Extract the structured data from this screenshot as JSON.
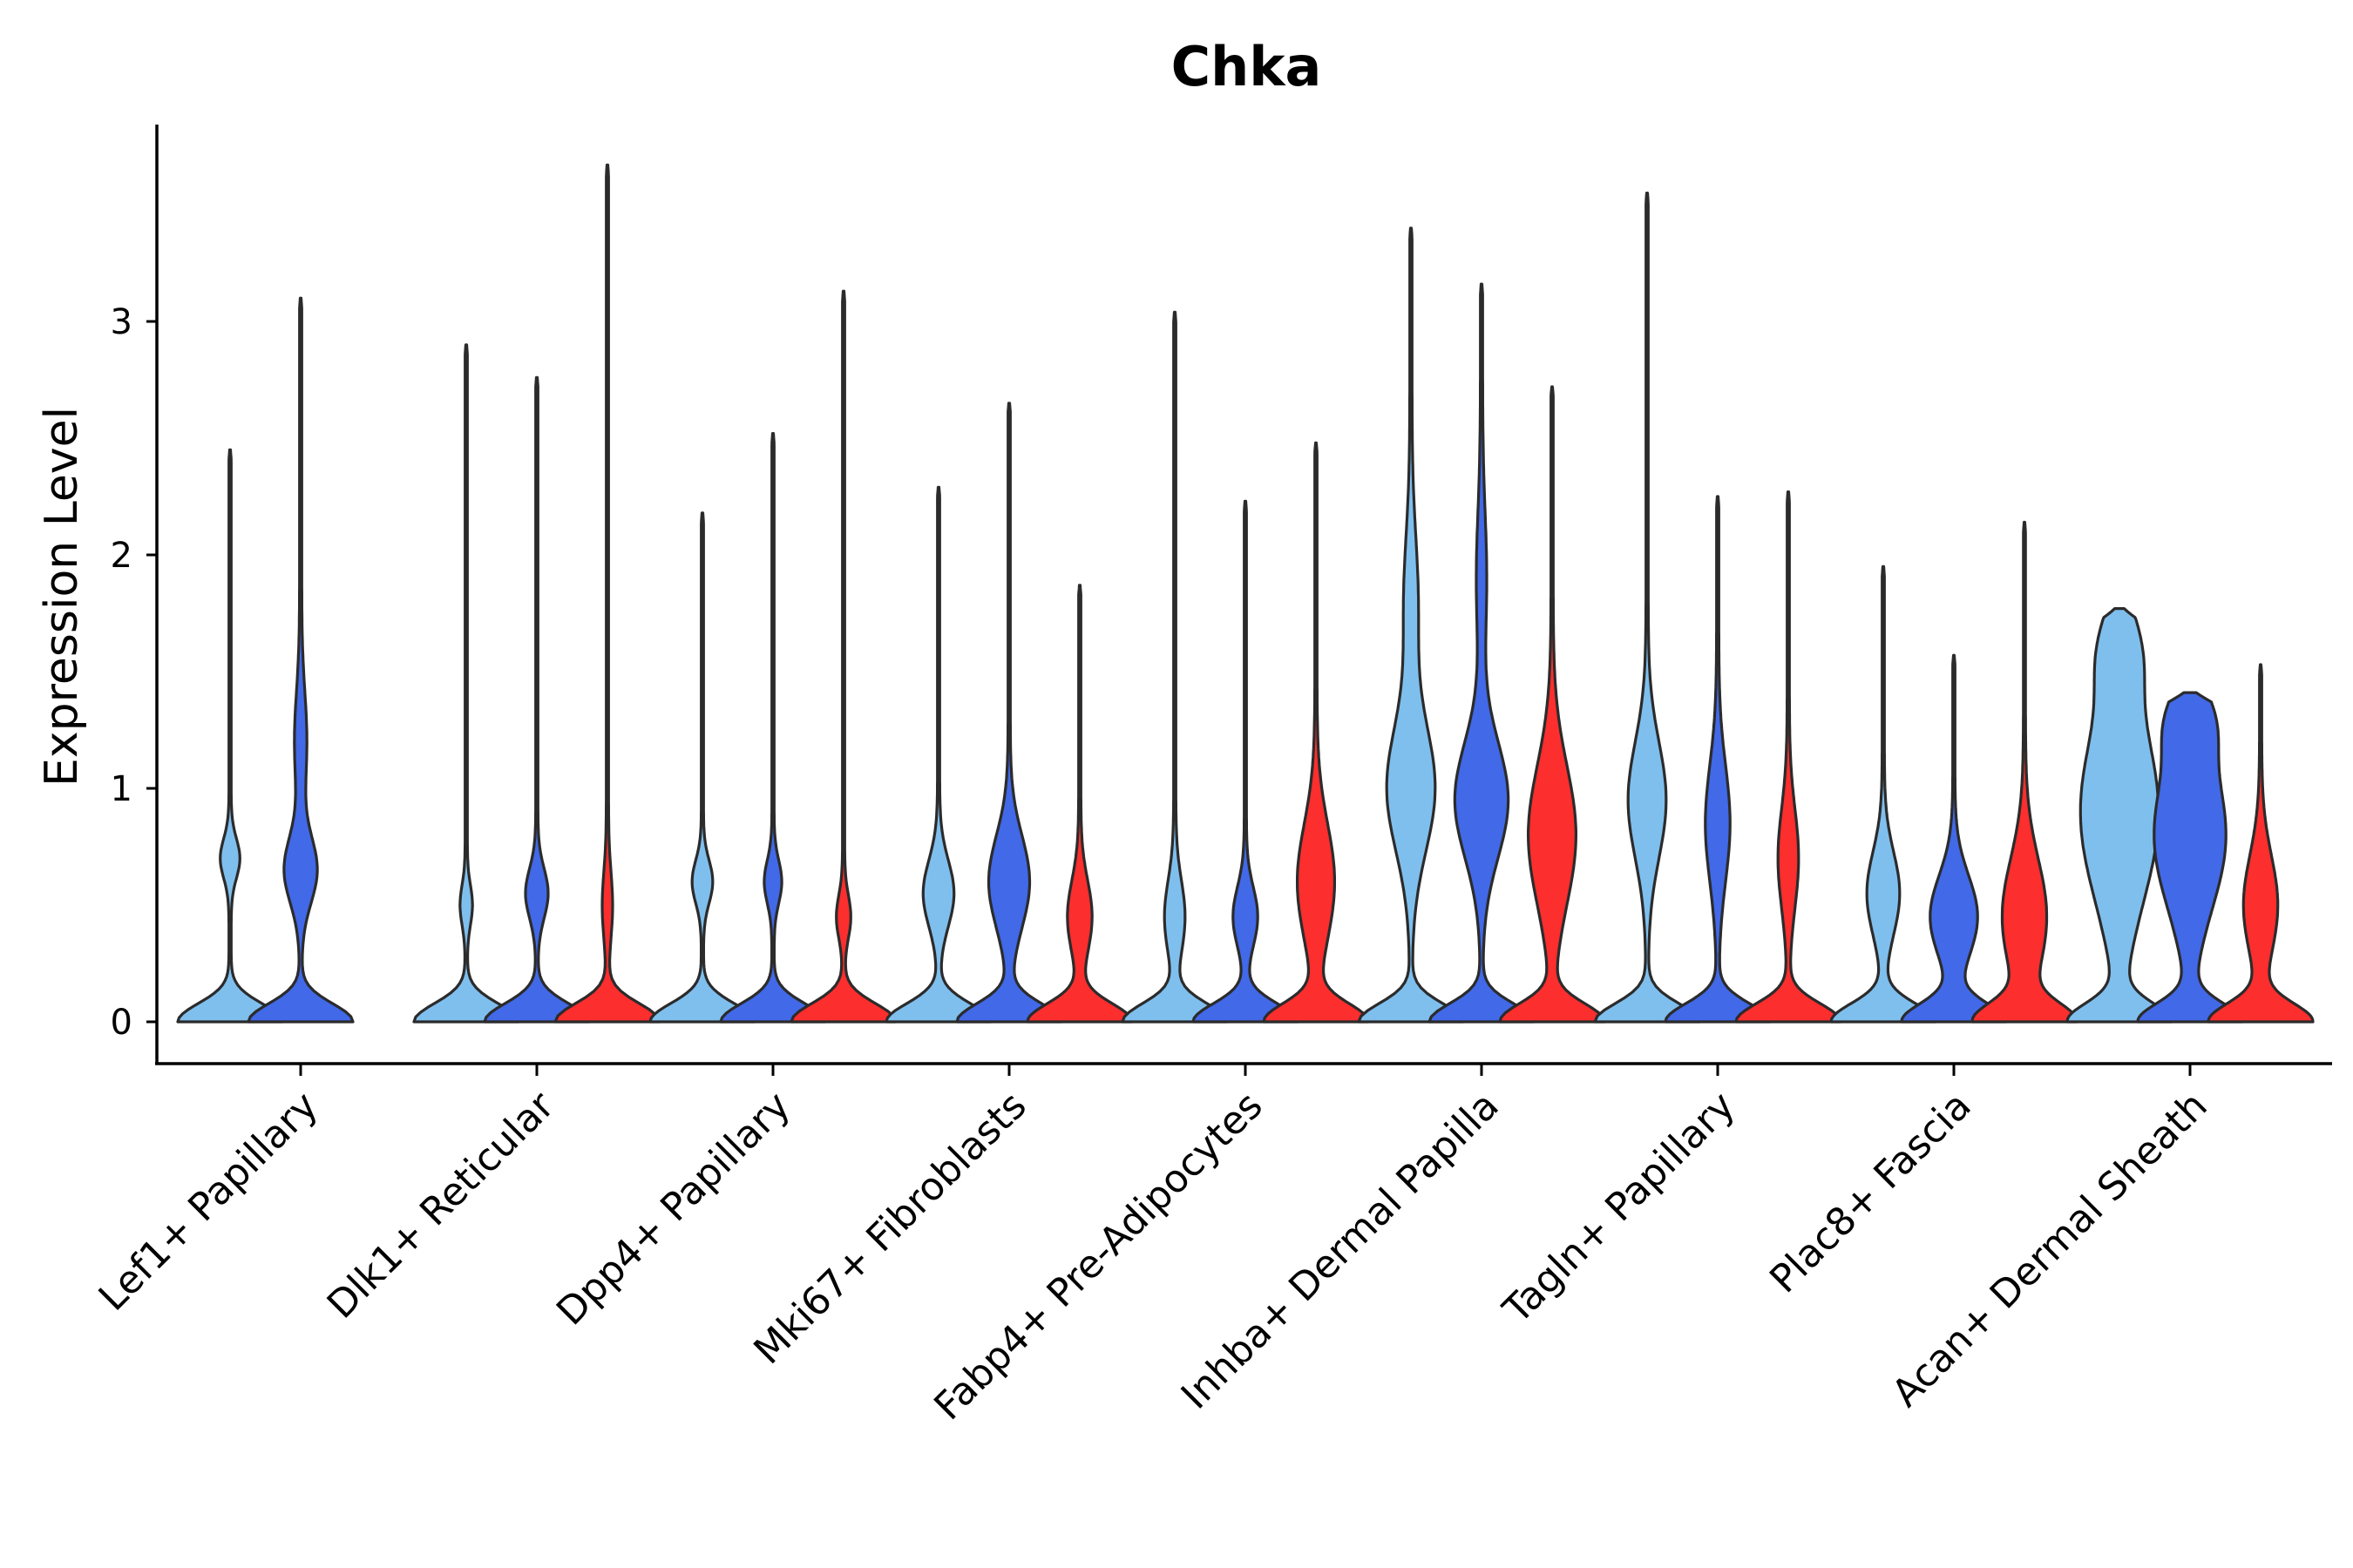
{
  "chart_data": {
    "type": "violin",
    "title": "Chka",
    "xlabel": "",
    "ylabel": "Expression Level",
    "ylim": [
      -0.18,
      3.85
    ],
    "yticks": [
      0,
      1,
      2,
      3
    ],
    "grid": false,
    "legend": "none",
    "series_colors": [
      "#7fbfee",
      "#4169e8",
      "#fc2e2e"
    ],
    "categories": [
      "Lef1+ Papillary",
      "Dlk1+ Reticular",
      "Dpp4+ Papillary",
      "Mki67+ Fibroblasts",
      "Fabp4+ Pre-Adipocytes",
      "Inhba+ Dermal Papilla",
      "Tagln+ Papillary",
      "Plac8+ Fascia",
      "Acan+ Dermal Sheath"
    ],
    "groups": [
      {
        "violins": [
          {
            "series": 0,
            "max": 2.45,
            "bumps": [
              [
                0.7,
                0.12,
                0.17
              ]
            ]
          },
          {
            "series": 1,
            "max": 3.1,
            "bumps": [
              [
                0.65,
                0.2,
                0.3
              ],
              [
                1.2,
                0.3,
                0.1
              ]
            ]
          },
          null
        ]
      },
      {
        "violins": [
          {
            "series": 0,
            "max": 2.9,
            "bumps": [
              [
                0.5,
                0.12,
                0.1
              ]
            ]
          },
          {
            "series": 1,
            "max": 2.76,
            "bumps": [
              [
                0.55,
                0.15,
                0.2
              ]
            ]
          },
          {
            "series": 2,
            "max": 3.67,
            "bumps": [
              [
                0.5,
                0.2,
                0.08
              ]
            ]
          }
        ]
      },
      {
        "violins": [
          {
            "series": 0,
            "max": 2.18,
            "bumps": [
              [
                0.6,
                0.13,
                0.18
              ]
            ]
          },
          {
            "series": 1,
            "max": 2.52,
            "bumps": [
              [
                0.6,
                0.13,
                0.15
              ]
            ]
          },
          {
            "series": 2,
            "max": 3.13,
            "bumps": [
              [
                0.45,
                0.13,
                0.12
              ]
            ]
          }
        ]
      },
      {
        "violins": [
          {
            "series": 0,
            "max": 2.29,
            "bumps": [
              [
                0.55,
                0.2,
                0.28
              ]
            ]
          },
          {
            "series": 1,
            "max": 2.65,
            "bumps": [
              [
                0.6,
                0.28,
                0.38
              ]
            ]
          },
          {
            "series": 2,
            "max": 1.87,
            "bumps": [
              [
                0.45,
                0.22,
                0.22
              ]
            ]
          }
        ]
      },
      {
        "violins": [
          {
            "series": 0,
            "max": 3.04,
            "bumps": [
              [
                0.45,
                0.22,
                0.18
              ]
            ]
          },
          {
            "series": 1,
            "max": 2.23,
            "bumps": [
              [
                0.45,
                0.18,
                0.22
              ]
            ]
          },
          {
            "series": 2,
            "max": 2.48,
            "bumps": [
              [
                0.6,
                0.35,
                0.35
              ]
            ]
          }
        ]
      },
      {
        "violins": [
          {
            "series": 0,
            "max": 3.4,
            "bumps": [
              [
                1.0,
                0.38,
                0.45
              ],
              [
                1.8,
                0.4,
                0.12
              ]
            ]
          },
          {
            "series": 1,
            "max": 3.16,
            "bumps": [
              [
                0.95,
                0.35,
                0.5
              ],
              [
                1.9,
                0.4,
                0.08
              ]
            ]
          },
          {
            "series": 2,
            "max": 2.72,
            "bumps": [
              [
                0.8,
                0.42,
                0.45
              ]
            ]
          }
        ]
      },
      {
        "violins": [
          {
            "series": 0,
            "max": 3.55,
            "bumps": [
              [
                0.95,
                0.35,
                0.35
              ]
            ]
          },
          {
            "series": 1,
            "max": 2.25,
            "bumps": [
              [
                0.85,
                0.35,
                0.22
              ]
            ]
          },
          {
            "series": 2,
            "max": 2.27,
            "bumps": [
              [
                0.7,
                0.3,
                0.18
              ]
            ]
          }
        ]
      },
      {
        "violins": [
          {
            "series": 0,
            "max": 1.95,
            "bumps": [
              [
                0.55,
                0.25,
                0.3
              ]
            ]
          },
          {
            "series": 1,
            "max": 1.57,
            "bumps": [
              [
                0.45,
                0.25,
                0.45
              ]
            ]
          },
          {
            "series": 2,
            "max": 2.14,
            "bumps": [
              [
                0.45,
                0.35,
                0.45
              ]
            ]
          }
        ]
      },
      {
        "violins": [
          {
            "series": 0,
            "max": 1.77,
            "bumps": [
              [
                0.9,
                0.55,
                0.78
              ],
              [
                1.6,
                0.25,
                0.3
              ]
            ]
          },
          {
            "series": 1,
            "max": 1.41,
            "bumps": [
              [
                0.8,
                0.45,
                0.7
              ],
              [
                1.3,
                0.2,
                0.3
              ]
            ]
          },
          {
            "series": 2,
            "max": 1.53,
            "bumps": [
              [
                0.5,
                0.3,
                0.32
              ]
            ]
          }
        ]
      }
    ]
  }
}
